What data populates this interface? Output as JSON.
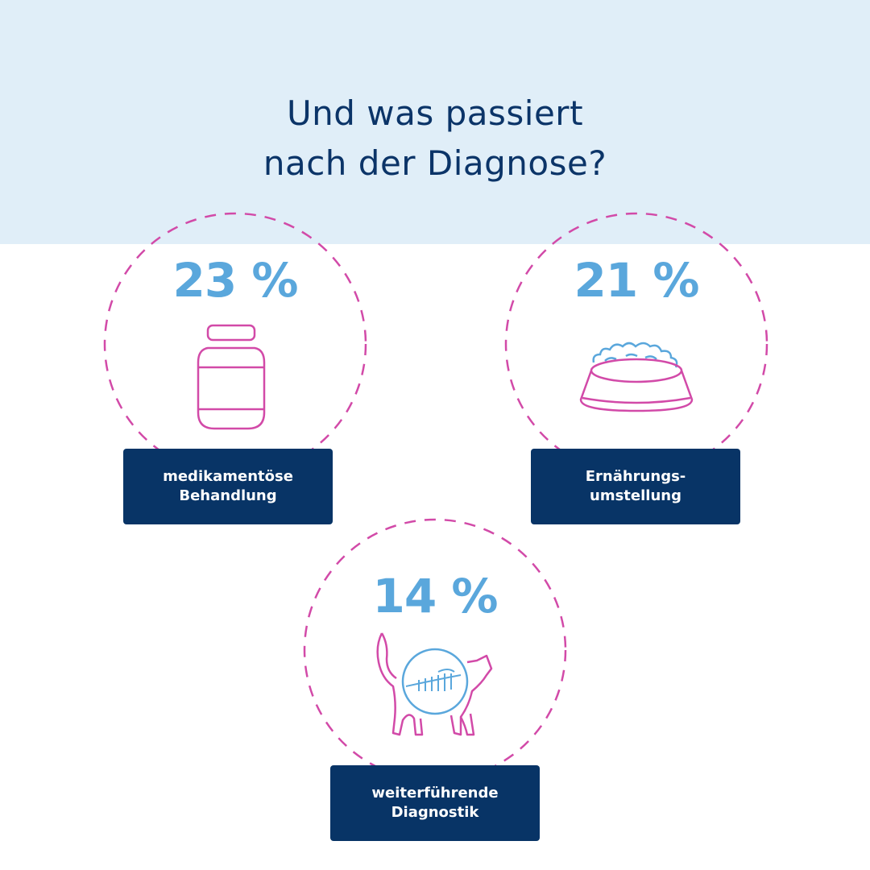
{
  "title": {
    "line1": "Und was passiert",
    "line2": "nach der Diagnose?"
  },
  "stats": [
    {
      "percent": "23 %",
      "value": 23,
      "label_line1": "medikamentöse",
      "label_line2": "Behandlung",
      "icon": "medicine-jar-icon"
    },
    {
      "percent": "21 %",
      "value": 21,
      "label_line1": "Ernährungs-",
      "label_line2": "umstellung",
      "icon": "food-bowl-icon"
    },
    {
      "percent": "14 %",
      "value": 14,
      "label_line1": "weiterführende",
      "label_line2": "Diagnostik",
      "icon": "cat-xray-icon"
    }
  ],
  "colors": {
    "band": "#e0eef8",
    "title": "#0b3468",
    "percent": "#5aa7dc",
    "ring": "#d24aa8",
    "label_bg": "#083466"
  }
}
